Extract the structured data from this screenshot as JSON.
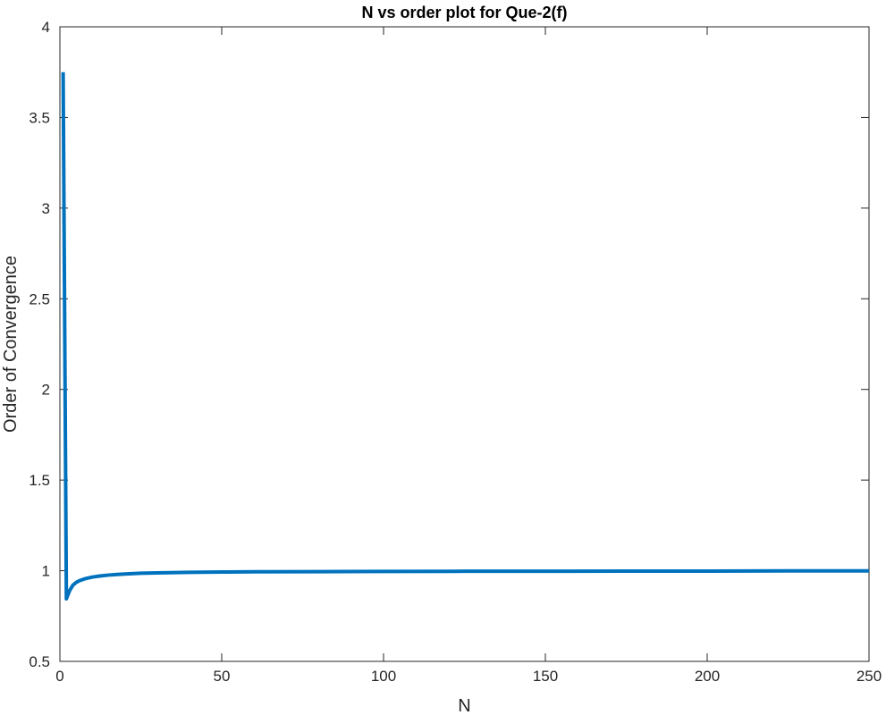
{
  "chart_data": {
    "type": "line",
    "title": "N vs order plot for Que-2(f)",
    "xlabel": "N",
    "ylabel": "Order of Convergence",
    "xlim": [
      0,
      250
    ],
    "ylim": [
      0.5,
      4
    ],
    "xticks": [
      0,
      50,
      100,
      150,
      200,
      250
    ],
    "xtick_labels": [
      "0",
      "50",
      "100",
      "150",
      "200",
      "250"
    ],
    "yticks": [
      0.5,
      1,
      1.5,
      2,
      2.5,
      3,
      3.5,
      4
    ],
    "ytick_labels": [
      "0.5",
      "1",
      "1.5",
      "2",
      "2.5",
      "3",
      "3.5",
      "4"
    ],
    "grid": false,
    "box": true,
    "series": [
      {
        "color": "#0072BD",
        "x": [
          1,
          2,
          3,
          4,
          5,
          6,
          8,
          10,
          12,
          15,
          20,
          25,
          30,
          40,
          50,
          60,
          80,
          100,
          125,
          150,
          175,
          200,
          225,
          250
        ],
        "y": [
          3.75,
          0.845,
          0.89,
          0.92,
          0.935,
          0.945,
          0.957,
          0.965,
          0.97,
          0.976,
          0.982,
          0.986,
          0.988,
          0.991,
          0.993,
          0.994,
          0.995,
          0.996,
          0.997,
          0.997,
          0.998,
          0.998,
          0.999,
          0.999
        ]
      }
    ]
  }
}
